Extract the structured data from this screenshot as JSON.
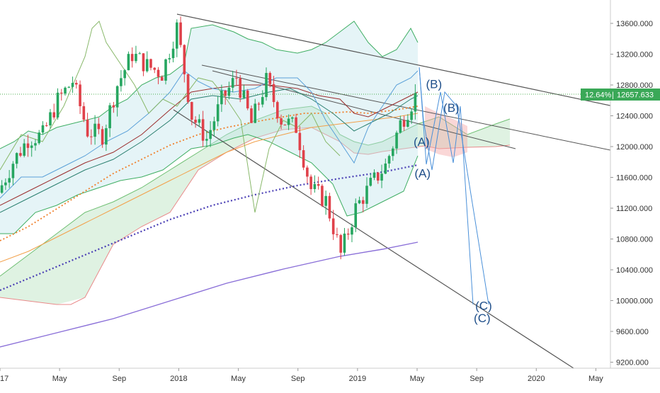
{
  "chart_data": {
    "type": "candlestick",
    "y_axis": {
      "ticks": [
        "13600.000",
        "13200.000",
        "12800.000",
        "12400.000",
        "12000.000",
        "11600.000",
        "11200.000",
        "10800.000",
        "10400.000",
        "10000.000",
        "9600.000",
        "9200.000"
      ],
      "position": "right",
      "range": [
        9150,
        13750
      ]
    },
    "x_axis": {
      "ticks": [
        {
          "label": "17",
          "date": "2017-01"
        },
        {
          "label": "May",
          "date": "2017-05"
        },
        {
          "label": "Sep",
          "date": "2017-09"
        },
        {
          "label": "2018",
          "date": "2018-01"
        },
        {
          "label": "May",
          "date": "2018-05"
        },
        {
          "label": "Sep",
          "date": "2018-09"
        },
        {
          "label": "2019",
          "date": "2019-01"
        },
        {
          "label": "May",
          "date": "2019-05"
        },
        {
          "label": "Sep",
          "date": "2019-09"
        },
        {
          "label": "2020",
          "date": "2020-01"
        },
        {
          "label": "May",
          "date": "2020-05"
        }
      ]
    },
    "last_price": {
      "percent": "12.64%",
      "value": "12657.633",
      "numeric": 12657.633
    },
    "wave_labels": [
      {
        "text": "(B)",
        "date": "2019-06-05",
        "price": 12760
      },
      {
        "text": "(B)",
        "date": "2019-07-10",
        "price": 12450
      },
      {
        "text": "(A)",
        "date": "2019-05-10",
        "price": 12010
      },
      {
        "text": "(A)",
        "date": "2019-05-12",
        "price": 11600
      },
      {
        "text": "(C)",
        "date": "2019-09-15",
        "price": 9880
      },
      {
        "text": "(C)",
        "date": "2019-09-12",
        "price": 9720
      }
    ],
    "price_weekly_approx": [
      [
        "2017-01",
        11400
      ],
      [
        "2017-02",
        11800
      ],
      [
        "2017-03",
        12100
      ],
      [
        "2017-04",
        12150
      ],
      [
        "2017-05",
        12600
      ],
      [
        "2017-06",
        12850
      ],
      [
        "2017-07",
        12200
      ],
      [
        "2017-08",
        12150
      ],
      [
        "2017-09",
        12800
      ],
      [
        "2017-10",
        13200
      ],
      [
        "2017-11",
        13050
      ],
      [
        "2017-12",
        12950
      ],
      [
        "2018-01",
        13550
      ],
      [
        "2018-02",
        12400
      ],
      [
        "2018-03",
        12100
      ],
      [
        "2018-04",
        12600
      ],
      [
        "2018-05",
        12900
      ],
      [
        "2018-06",
        12300
      ],
      [
        "2018-07",
        12850
      ],
      [
        "2018-08",
        12350
      ],
      [
        "2018-09",
        12250
      ],
      [
        "2018-10",
        11450
      ],
      [
        "2018-11",
        11300
      ],
      [
        "2018-12",
        10600
      ],
      [
        "2019-01",
        11200
      ],
      [
        "2019-02",
        11500
      ],
      [
        "2019-03",
        11750
      ],
      [
        "2019-04",
        12300
      ],
      [
        "2019-05",
        12650
      ]
    ]
  }
}
